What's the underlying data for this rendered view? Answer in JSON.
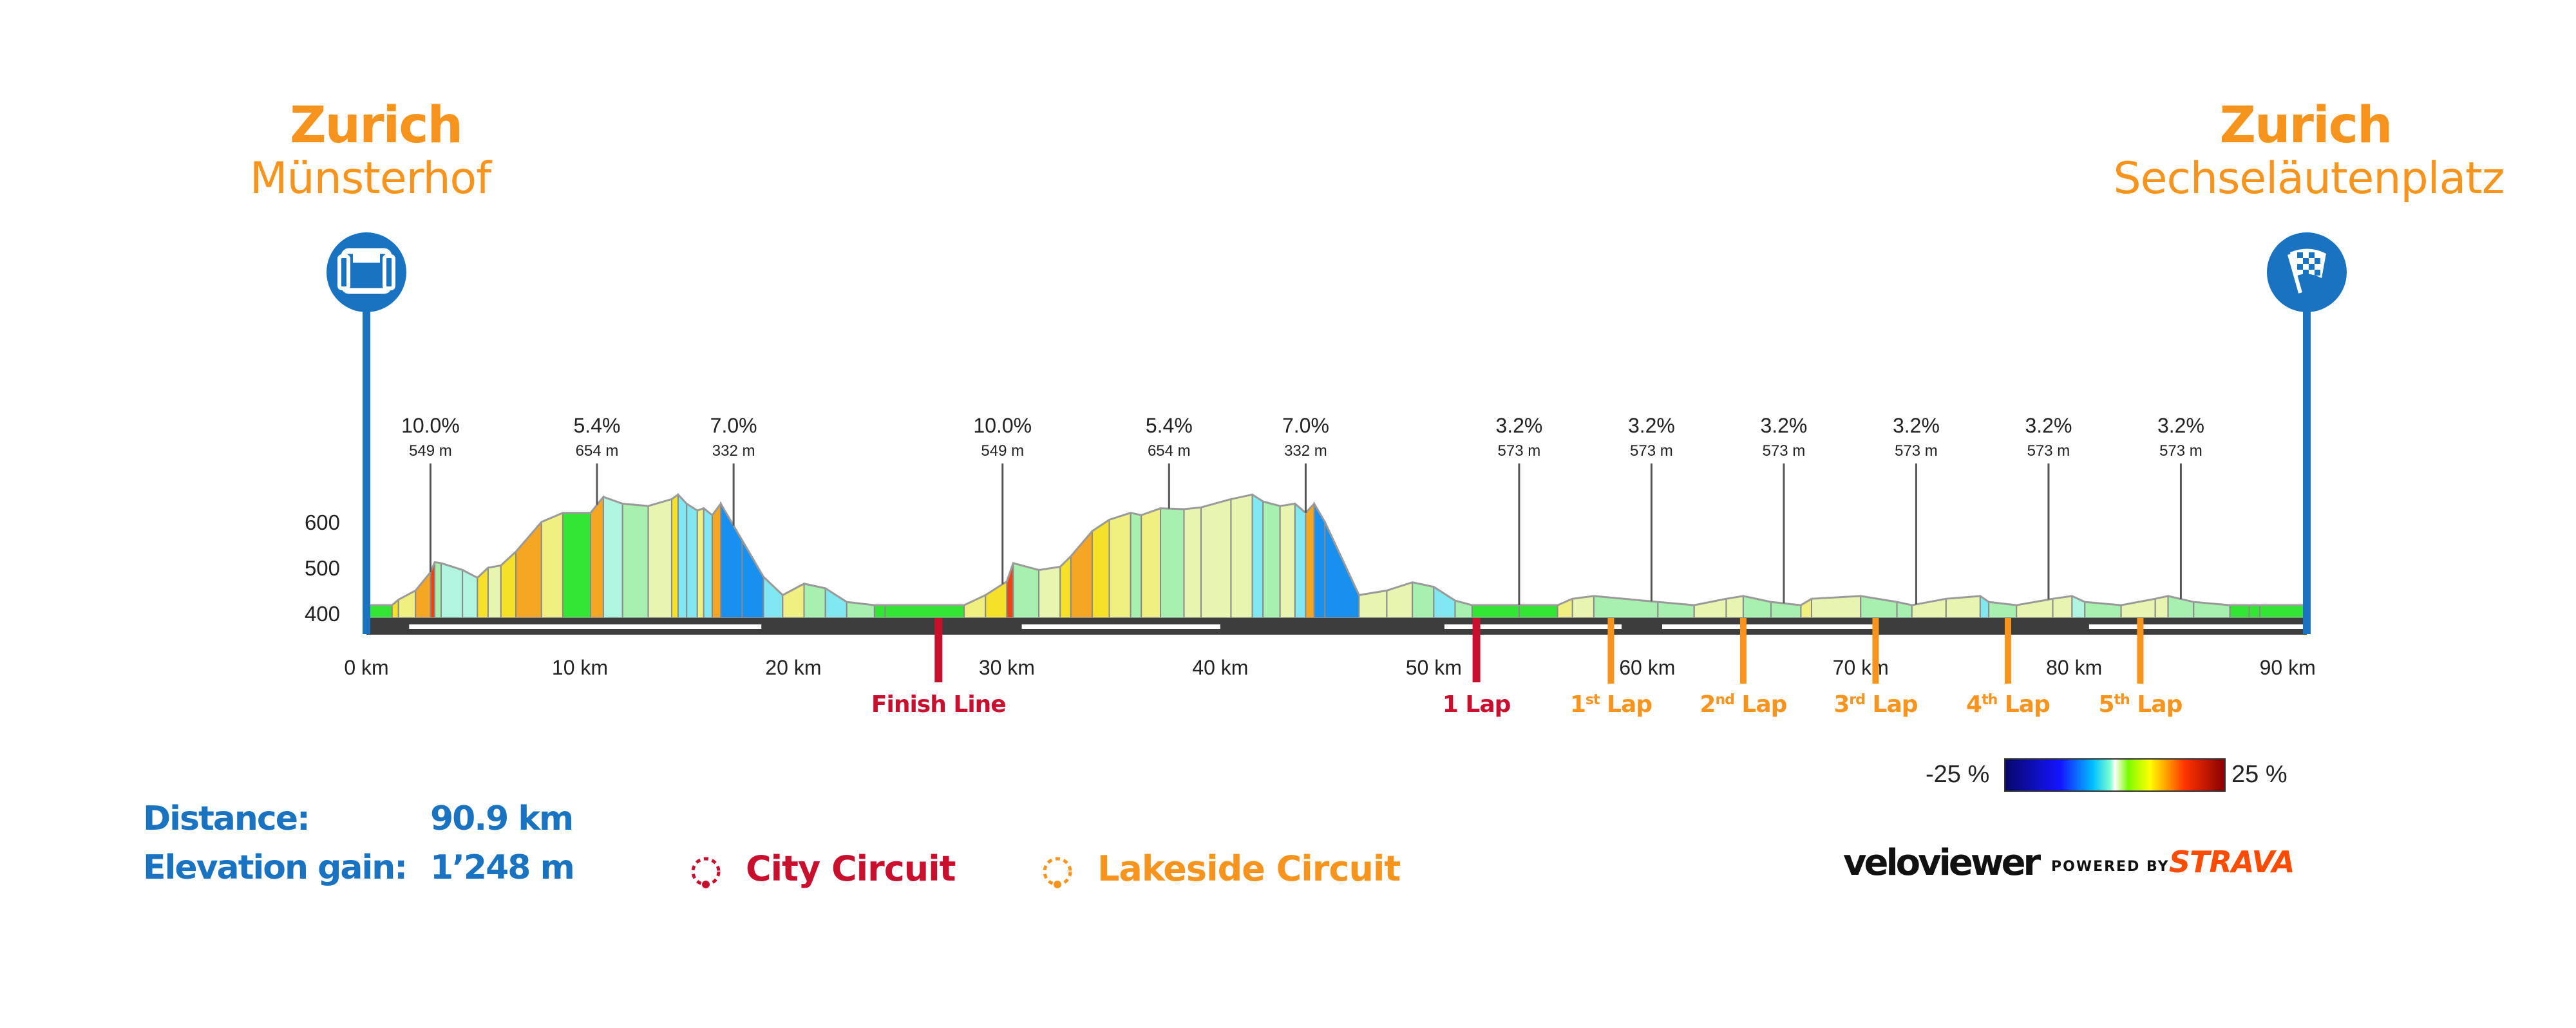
{
  "start": {
    "city": "Zurich",
    "place": "Münsterhof",
    "icon": "start-gate-icon"
  },
  "finish": {
    "city": "Zurich",
    "place": "Sechseläutenplatz",
    "icon": "checkered-flag-icon"
  },
  "stats": {
    "distance_label": "Distance:",
    "distance_value": "90.9 km",
    "elevation_label": "Elevation gain:",
    "elevation_value": "1’248 m"
  },
  "circuits": [
    {
      "name": "City Circuit",
      "color": "#c8102e",
      "icon": "city-circuit-icon"
    },
    {
      "name": "Lakeside Circuit",
      "color": "#f7941d",
      "icon": "lakeside-circuit-icon"
    }
  ],
  "gradient_legend": {
    "min": "-25 %",
    "max": "25 %"
  },
  "branding": {
    "veloviewer": "veloviewer",
    "powered_by": "POWERED BY",
    "strava": "STRAVA"
  },
  "colors": {
    "start_finish_blue": "#1a73c1",
    "city": "#c8102e",
    "lakeside": "#f7941d",
    "baseline": "#3d3d3d"
  },
  "chart_data": {
    "type": "area",
    "title": "",
    "xlabel": "",
    "ylabel": "",
    "xlim": [
      0,
      90.9
    ],
    "ylim": [
      400,
      700
    ],
    "x_ticks": [
      0,
      10,
      20,
      30,
      40,
      50,
      60,
      70,
      80,
      90
    ],
    "x_tick_labels": [
      "0 km",
      "10 km",
      "20 km",
      "30 km",
      "40 km",
      "50 km",
      "60 km",
      "70 km",
      "80 km",
      "90 km"
    ],
    "y_ticks": [
      400,
      500,
      600
    ],
    "y_tick_labels": [
      "400",
      "500",
      "600"
    ],
    "profile_km": [
      0,
      1.2,
      1.5,
      2.3,
      3.0,
      3.2,
      3.5,
      4.5,
      5.2,
      5.7,
      6.3,
      7.0,
      8.2,
      9.2,
      10.5,
      11.1,
      12.0,
      13.2,
      14.3,
      14.6,
      15.0,
      15.5,
      15.8,
      16.2,
      16.6,
      17.6,
      18.6,
      19.5,
      20.5,
      21.5,
      22.5,
      23.8,
      24.3,
      28.0,
      29.0,
      30.0,
      30.3,
      31.5,
      32.5,
      33.0,
      34.0,
      34.8,
      35.8,
      36.3,
      37.2,
      38.3,
      39.1,
      40.5,
      41.5,
      42.0,
      42.8,
      43.5,
      44.0,
      44.4,
      44.9,
      46.5,
      47.8,
      49.0,
      50.0,
      51.0,
      51.8,
      54.0,
      55.8,
      56.5,
      57.5,
      60.5,
      62.2,
      63.7,
      64.5,
      65.8,
      67.2,
      67.7,
      70.0,
      71.7,
      72.4,
      74.0,
      75.6,
      76.0,
      77.3,
      79.0,
      79.9,
      80.5,
      82.2,
      83.8,
      84.4,
      85.6,
      87.3,
      88.2,
      88.7,
      90.9
    ],
    "profile_elevation": [
      418,
      418,
      430,
      450,
      490,
      512,
      510,
      495,
      478,
      500,
      505,
      535,
      600,
      620,
      620,
      655,
      640,
      635,
      650,
      660,
      640,
      625,
      630,
      615,
      640,
      560,
      480,
      440,
      465,
      455,
      425,
      418,
      418,
      418,
      440,
      470,
      510,
      495,
      502,
      525,
      580,
      605,
      620,
      615,
      630,
      628,
      632,
      650,
      660,
      645,
      635,
      640,
      620,
      640,
      600,
      440,
      450,
      468,
      458,
      428,
      418,
      418,
      418,
      432,
      438,
      425,
      418,
      432,
      438,
      425,
      418,
      432,
      438,
      425,
      418,
      432,
      438,
      425,
      418,
      432,
      438,
      425,
      418,
      432,
      438,
      425,
      418,
      418,
      418,
      418
    ],
    "climbs": [
      {
        "km": 3.0,
        "gradient": "10.0%",
        "height": "549 m"
      },
      {
        "km": 10.8,
        "gradient": "5.4%",
        "height": "654 m"
      },
      {
        "km": 17.2,
        "gradient": "7.0%",
        "height": "332 m"
      },
      {
        "km": 29.8,
        "gradient": "10.0%",
        "height": "549 m"
      },
      {
        "km": 37.6,
        "gradient": "5.4%",
        "height": "654 m"
      },
      {
        "km": 44.0,
        "gradient": "7.0%",
        "height": "332 m"
      },
      {
        "km": 54.0,
        "gradient": "3.2%",
        "height": "573 m"
      },
      {
        "km": 60.2,
        "gradient": "3.2%",
        "height": "573 m"
      },
      {
        "km": 66.4,
        "gradient": "3.2%",
        "height": "573 m"
      },
      {
        "km": 72.6,
        "gradient": "3.2%",
        "height": "573 m"
      },
      {
        "km": 78.8,
        "gradient": "3.2%",
        "height": "573 m"
      },
      {
        "km": 85.0,
        "gradient": "3.2%",
        "height": "573 m"
      }
    ],
    "markers": [
      {
        "km": 26.8,
        "label": "Finish Line",
        "sup": "",
        "circuit": "city"
      },
      {
        "km": 52.0,
        "label": "1 Lap",
        "sup": "",
        "circuit": "city"
      },
      {
        "km": 58.3,
        "label": "1",
        "sup": "st",
        "suffix": " Lap",
        "circuit": "lakeside"
      },
      {
        "km": 64.5,
        "label": "2",
        "sup": "nd",
        "suffix": " Lap",
        "circuit": "lakeside"
      },
      {
        "km": 70.7,
        "label": "3",
        "sup": "rd",
        "suffix": " Lap",
        "circuit": "lakeside"
      },
      {
        "km": 76.9,
        "label": "4",
        "sup": "th",
        "suffix": " Lap",
        "circuit": "lakeside"
      },
      {
        "km": 83.1,
        "label": "5",
        "sup": "th",
        "suffix": " Lap",
        "circuit": "lakeside"
      }
    ]
  }
}
